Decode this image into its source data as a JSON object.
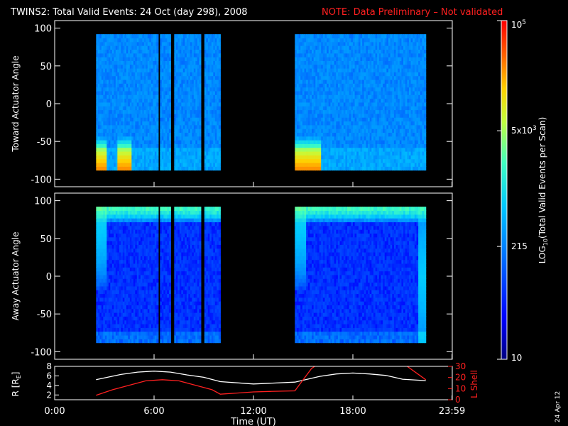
{
  "title": "TWINS2: Total Valid Events: 24 Oct (day 298), 2008",
  "note": "NOTE: Data Preliminary – Not validated",
  "date_stamp": "24 Apr 12",
  "colors": {
    "background": "#000000",
    "text": "#ffffff",
    "note": "#ff2020",
    "r_line": "#ffffff",
    "lshell_line": "#ff2020"
  },
  "colorbar": {
    "label": "LOG10(Total Valid Events per Scan)",
    "label_main": "LOG",
    "label_sub": "10",
    "label_rest": "(Total Valid Events per Scan)",
    "scale": "log",
    "range": [
      10,
      100000
    ],
    "ticks": [
      {
        "value": 10,
        "label": "10"
      },
      {
        "value": 215,
        "label": "215"
      },
      {
        "value": 5000,
        "label": "5x10",
        "sup": "3"
      },
      {
        "value": 100000,
        "label": "10",
        "sup": "5"
      }
    ],
    "colormap": "rainbow (dark blue → blue → cyan → green → yellow → orange → red)"
  },
  "time_axis": {
    "label": "Time (UT)",
    "range_hours": [
      0,
      24
    ],
    "ticks": [
      {
        "value": 0,
        "label": "0:00"
      },
      {
        "value": 6,
        "label": "6:00"
      },
      {
        "value": 12,
        "label": "12:00"
      },
      {
        "value": 18,
        "label": "18:00"
      },
      {
        "value": 23.983,
        "label": "23:59"
      }
    ]
  },
  "chart_data": [
    {
      "type": "heatmap",
      "panel": "toward",
      "ylabel": "Toward Actuator Angle",
      "ylim": [
        -110,
        110
      ],
      "yticks": [
        100,
        50,
        0,
        -50,
        -100
      ],
      "angle_range": [
        -88,
        92
      ],
      "data_blocks_hours": [
        [
          2.5,
          10.0
        ],
        [
          14.5,
          22.4
        ]
      ],
      "data_gaps_hours": [
        [
          6.2,
          6.35
        ],
        [
          7.05,
          7.2
        ],
        [
          8.85,
          9.0
        ]
      ],
      "features": {
        "background_level": 215,
        "low_angle_max": 20000,
        "low_angle_hot_intervals_hours": [
          [
            2.5,
            3.1
          ],
          [
            3.7,
            4.6
          ],
          [
            14.5,
            16.0
          ]
        ]
      }
    },
    {
      "type": "heatmap",
      "panel": "away",
      "ylabel": "Away Actuator Angle",
      "ylim": [
        -110,
        110
      ],
      "yticks": [
        100,
        50,
        0,
        -50,
        -100
      ],
      "angle_range": [
        -88,
        92
      ],
      "data_blocks_hours": [
        [
          2.5,
          10.0
        ],
        [
          14.5,
          22.4
        ]
      ],
      "data_gaps_hours": [
        [
          6.2,
          6.35
        ],
        [
          7.05,
          7.2
        ],
        [
          8.85,
          9.0
        ]
      ],
      "features": {
        "background_level": 60,
        "high_angle_max": 3000,
        "right_edge_hours": [
          21.9,
          22.4
        ]
      }
    },
    {
      "type": "line",
      "panel": "orbit",
      "ylabel_left": "R [RE]",
      "ylabel_right": "L Shell",
      "ylim_left": [
        1,
        8
      ],
      "yticks_left": [
        2,
        4,
        6,
        8
      ],
      "ylim_right": [
        0,
        30
      ],
      "yticks_right": [
        0,
        10,
        20,
        30
      ],
      "series": [
        {
          "name": "R [RE]",
          "axis": "left",
          "color": "#ffffff",
          "x": [
            2.5,
            4,
            5,
            6,
            7,
            8,
            9,
            10,
            12,
            14.5,
            16,
            17,
            18,
            19,
            20,
            21,
            22.4
          ],
          "y": [
            5.2,
            6.3,
            6.8,
            7.0,
            6.8,
            6.2,
            5.7,
            4.8,
            4.3,
            4.7,
            5.9,
            6.4,
            6.6,
            6.4,
            6.1,
            5.3,
            5.0
          ]
        },
        {
          "name": "L Shell",
          "axis": "right",
          "color": "#ff2020",
          "x": [
            2.5,
            3.5,
            4.5,
            5.5,
            6.5,
            7.5,
            8.5,
            9.5,
            10,
            11,
            12,
            13,
            14.5,
            15.5,
            16
          ],
          "y": [
            4,
            9,
            13,
            17,
            18,
            17,
            13,
            9,
            5,
            6,
            7,
            7.5,
            8,
            28,
            33
          ]
        },
        {
          "name": "L Shell (late)",
          "axis": "right",
          "color": "#ff2020",
          "x": [
            21,
            22.4
          ],
          "y": [
            33,
            18
          ]
        }
      ]
    }
  ]
}
